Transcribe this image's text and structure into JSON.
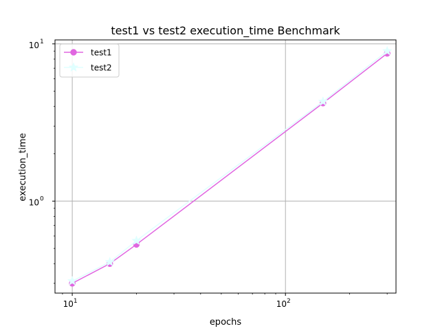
{
  "chart_data": {
    "type": "line",
    "title": "test1 vs test2 execution_time Benchmark",
    "xlabel": "epochs",
    "ylabel": "execution_time",
    "xscale": "log",
    "yscale": "log",
    "xlim": [
      8.3,
      330
    ],
    "ylim": [
      0.26,
      10.6
    ],
    "grid": true,
    "legend_position": "top-left",
    "x_major_ticks": [
      {
        "value": 10,
        "label": "10",
        "exp": "1"
      },
      {
        "value": 100,
        "label": "10",
        "exp": "2"
      }
    ],
    "y_major_ticks": [
      {
        "value": 1,
        "label": "10",
        "exp": "0"
      },
      {
        "value": 10,
        "label": "10",
        "exp": "1"
      }
    ],
    "x": [
      10,
      15,
      20,
      150,
      300
    ],
    "series": [
      {
        "name": "test1",
        "color": "#e066e0",
        "marker": "circle",
        "values": [
          0.3,
          0.4,
          0.53,
          4.2,
          8.7
        ]
      },
      {
        "name": "test2",
        "color": "#e0ffff",
        "marker": "star",
        "values": [
          0.31,
          0.41,
          0.56,
          4.3,
          9.0
        ]
      }
    ]
  }
}
